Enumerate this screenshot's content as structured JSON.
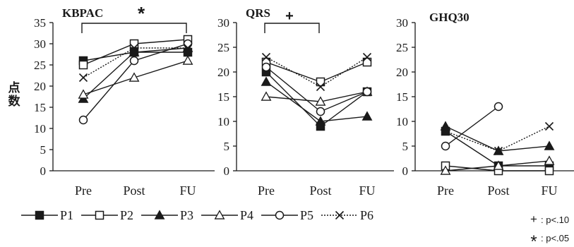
{
  "y_axis_label": "点数",
  "x_categories": [
    "Pre",
    "Post",
    "FU"
  ],
  "legend": [
    {
      "name": "P1",
      "marker": "filled-square",
      "dash": false
    },
    {
      "name": "P2",
      "marker": "open-square",
      "dash": false
    },
    {
      "name": "P3",
      "marker": "filled-triangle",
      "dash": false
    },
    {
      "name": "P4",
      "marker": "open-triangle",
      "dash": false
    },
    {
      "name": "P5",
      "marker": "open-circle",
      "dash": false
    },
    {
      "name": "P6",
      "marker": "x",
      "dash": true
    }
  ],
  "significance_legend": [
    {
      "symbol": "+",
      "label": ": p<.10"
    },
    {
      "symbol": "*",
      "label": ": p<.05"
    }
  ],
  "colors": {
    "ink": "#1a1a1a",
    "background": "#ffffff"
  },
  "chart_data": [
    {
      "type": "line",
      "title": "KBPAC",
      "significance_mark": "*",
      "significance_between": [
        "Pre",
        "FU"
      ],
      "categories": [
        "Pre",
        "Post",
        "FU"
      ],
      "ylim": [
        0,
        35
      ],
      "yticks": [
        0,
        5,
        10,
        15,
        20,
        25,
        30,
        35
      ],
      "series": [
        {
          "name": "P1",
          "values": [
            26,
            28,
            28
          ]
        },
        {
          "name": "P2",
          "values": [
            25,
            30,
            31
          ]
        },
        {
          "name": "P3",
          "values": [
            17,
            28,
            29
          ]
        },
        {
          "name": "P4",
          "values": [
            18,
            22,
            26
          ]
        },
        {
          "name": "P5",
          "values": [
            12,
            26,
            30
          ]
        },
        {
          "name": "P6",
          "values": [
            22,
            29,
            29
          ]
        }
      ]
    },
    {
      "type": "line",
      "title": "QRS",
      "significance_mark": "+",
      "significance_between": [
        "Pre",
        "Post"
      ],
      "categories": [
        "Pre",
        "Post",
        "FU"
      ],
      "ylim": [
        0,
        30
      ],
      "yticks": [
        0,
        5,
        10,
        15,
        20,
        25,
        30
      ],
      "series": [
        {
          "name": "P1",
          "values": [
            20,
            9,
            16
          ]
        },
        {
          "name": "P2",
          "values": [
            22,
            18,
            22
          ]
        },
        {
          "name": "P3",
          "values": [
            18,
            10,
            11
          ]
        },
        {
          "name": "P4",
          "values": [
            15,
            14,
            16
          ]
        },
        {
          "name": "P5",
          "values": [
            21,
            12,
            16
          ]
        },
        {
          "name": "P6",
          "values": [
            23,
            17,
            23
          ]
        }
      ]
    },
    {
      "type": "line",
      "title": "GHQ30",
      "categories": [
        "Pre",
        "Post",
        "FU"
      ],
      "ylim": [
        0,
        30
      ],
      "yticks": [
        0,
        5,
        10,
        15,
        20,
        25,
        30
      ],
      "series": [
        {
          "name": "P1",
          "values": [
            8,
            1,
            1
          ]
        },
        {
          "name": "P2",
          "values": [
            1,
            0,
            0
          ]
        },
        {
          "name": "P3",
          "values": [
            9,
            4,
            5
          ]
        },
        {
          "name": "P4",
          "values": [
            0,
            1,
            2
          ]
        },
        {
          "name": "P5",
          "values": [
            5,
            13,
            null
          ]
        },
        {
          "name": "P6",
          "values": [
            8,
            4,
            9
          ]
        }
      ]
    }
  ]
}
